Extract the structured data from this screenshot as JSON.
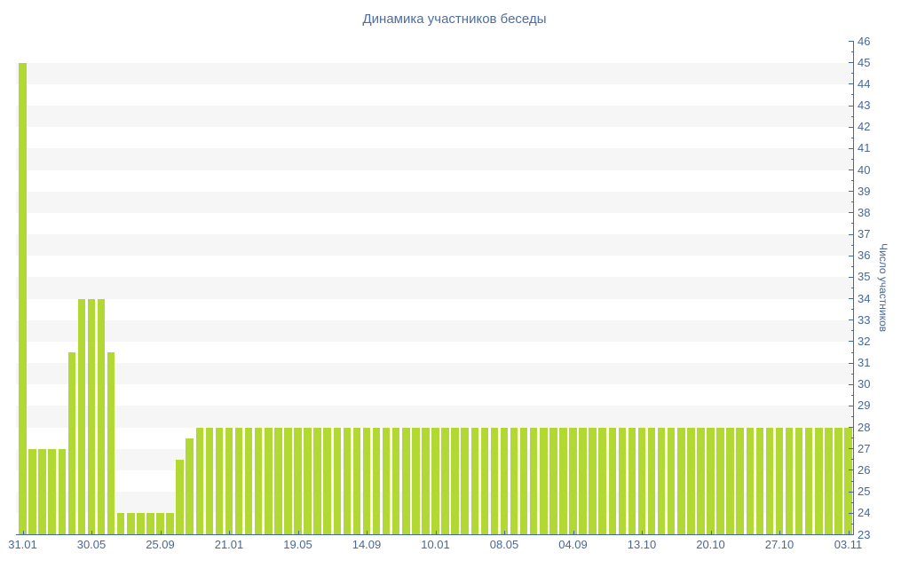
{
  "page": {
    "background_color": "#ffffff"
  },
  "chart_data": {
    "type": "bar",
    "title": "Динамика участников беседы",
    "xlabel": "",
    "ylabel": "Число участников",
    "ylim": [
      23,
      46
    ],
    "y_ticks": [
      23,
      24,
      25,
      26,
      27,
      28,
      29,
      30,
      31,
      32,
      33,
      34,
      35,
      36,
      37,
      38,
      39,
      40,
      41,
      42,
      43,
      44,
      45,
      46
    ],
    "y_minor_ticks_every": 0.5,
    "grid": "alternating horizontal stripe bands, one y-unit tall",
    "legend": "none",
    "bar_color": "#b2d834",
    "axis_color": "#45689e",
    "label_color": "#48679b",
    "title_color": "#4e6da3",
    "stripe_color": "#f6f6f7",
    "x_tick_labels": [
      "31.01",
      "30.05",
      "25.09",
      "21.01",
      "19.05",
      "14.09",
      "10.01",
      "08.05",
      "04.09",
      "13.10",
      "20.10",
      "27.10",
      "03.11"
    ],
    "x_tick_every": 7,
    "values": [
      45,
      27,
      27,
      27,
      27,
      31.5,
      34,
      34,
      34,
      31.5,
      24,
      24,
      24,
      24,
      24,
      24,
      26.5,
      27.5,
      28,
      28,
      28,
      28,
      28,
      28,
      28,
      28,
      28,
      28,
      28,
      28,
      28,
      28,
      28,
      28,
      28,
      28,
      28,
      28,
      28,
      28,
      28,
      28,
      28,
      28,
      28,
      28,
      28,
      28,
      28,
      28,
      28,
      28,
      28,
      28,
      28,
      28,
      28,
      28,
      28,
      28,
      28,
      28,
      28,
      28,
      28,
      28,
      28,
      28,
      28,
      28,
      28,
      28,
      28,
      28,
      28,
      28,
      28,
      28,
      28,
      28,
      28,
      28,
      28,
      28,
      28
    ]
  }
}
